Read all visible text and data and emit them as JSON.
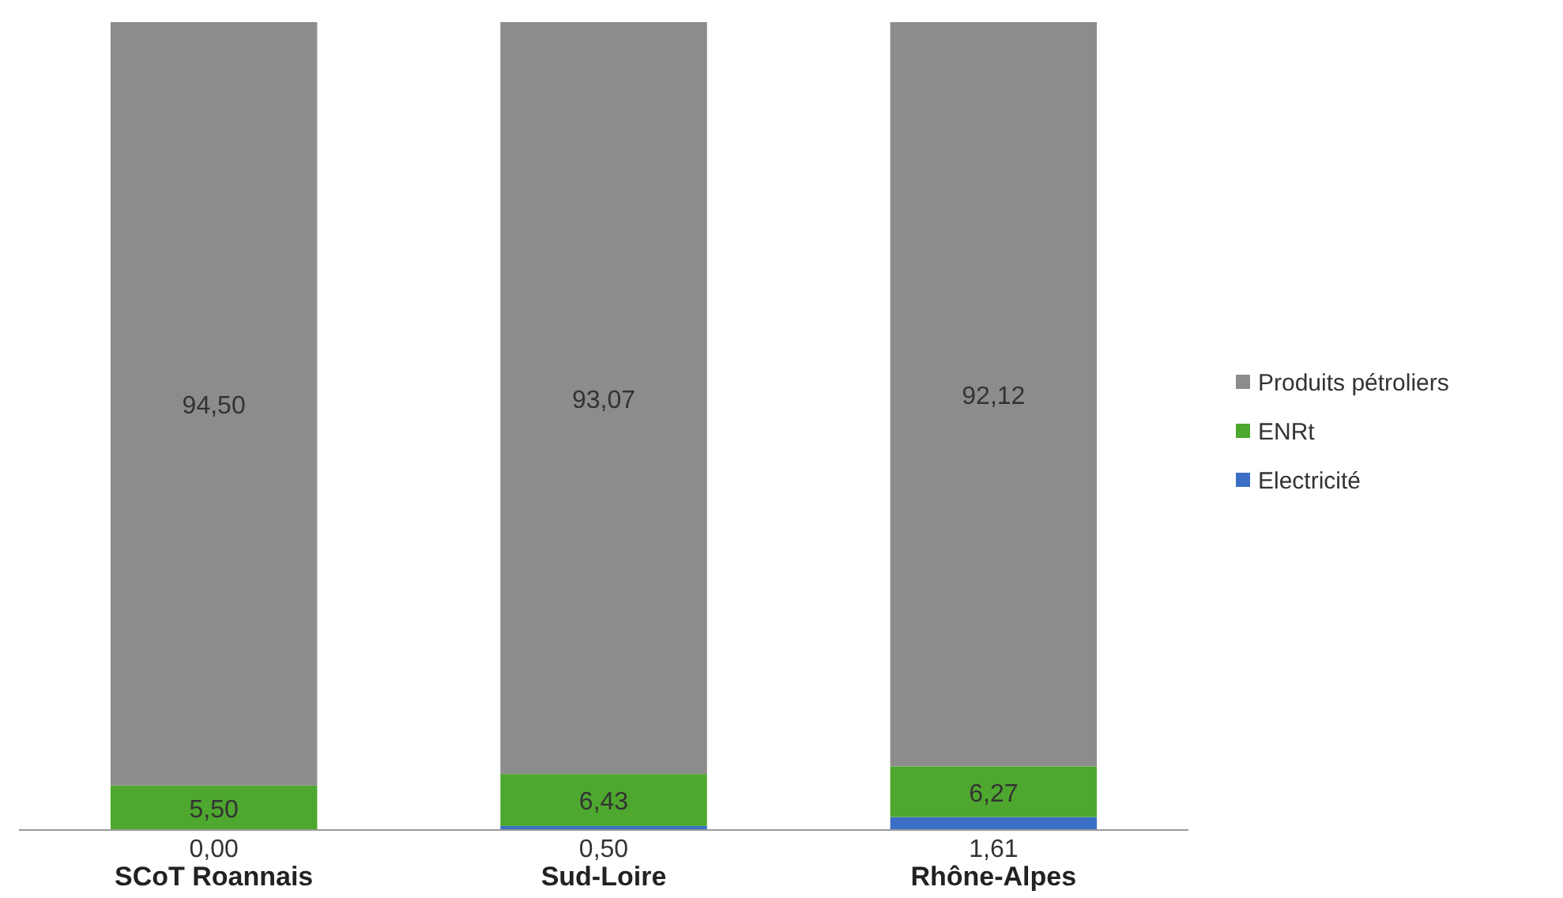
{
  "chart_data": {
    "type": "bar",
    "stacked": true,
    "categories": [
      "SCoT Roannais",
      "Sud-Loire",
      "Rhône-Alpes"
    ],
    "legend": "right",
    "series": [
      {
        "name": "Electricité",
        "color": "#3b6fc6",
        "values": [
          0.0,
          0.5,
          1.61
        ],
        "value_labels": [
          "0,00",
          "0,50",
          "1,61"
        ]
      },
      {
        "name": "ENRt",
        "color": "#4ea72e",
        "values": [
          5.5,
          6.43,
          6.27
        ],
        "value_labels": [
          "5,50",
          "6,43",
          "6,27"
        ]
      },
      {
        "name": "Produits pétroliers",
        "color": "#8c8c8c",
        "values": [
          94.5,
          93.07,
          92.12
        ],
        "value_labels": [
          "94,50",
          "93,07",
          "92,12"
        ]
      }
    ]
  }
}
